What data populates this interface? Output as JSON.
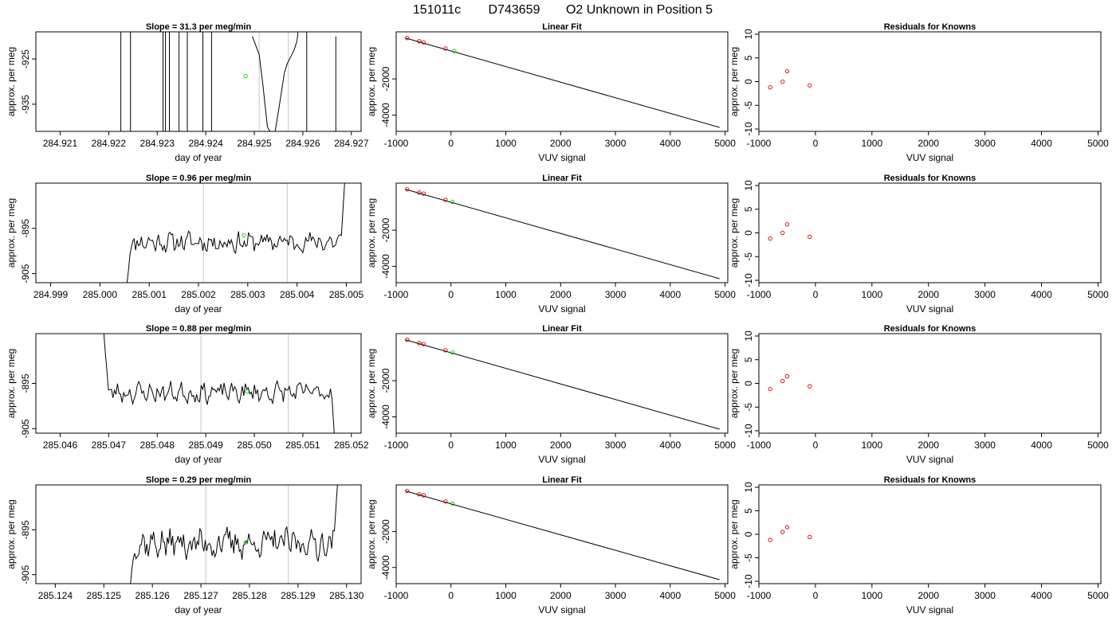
{
  "figure": {
    "title_parts": [
      "151011c",
      "D743659",
      "O2 Unknown in Position  5"
    ]
  },
  "colors": {
    "trace": "#000000",
    "vertical_marker": "#c8c8c8",
    "unknown_point": "#00cc00",
    "known_point": "#cc0000"
  },
  "chart_data": [
    {
      "type": "line",
      "row": 0,
      "col": 0,
      "title": "Slope =  31.3  per meg/min",
      "xlabel": "day of year",
      "ylabel": "approx. per meg",
      "xlim": [
        284.9205,
        284.9272
      ],
      "ylim": [
        -941,
        -919
      ],
      "xticks": [
        284.921,
        284.922,
        284.923,
        284.924,
        284.925,
        284.926,
        284.927
      ],
      "xtick_labels": [
        "284.921",
        "284.922",
        "284.923",
        "284.924",
        "284.925",
        "284.926",
        "284.927"
      ],
      "yticks": [
        -925,
        -935
      ],
      "ytick_labels": [
        "-925",
        "-935"
      ],
      "vlines": [
        284.9251,
        284.9257
      ],
      "segments": [
        [
          [
            284.92225,
            -919
          ],
          [
            284.92225,
            -941
          ]
        ],
        [
          [
            284.92245,
            -941
          ],
          [
            284.92245,
            -919
          ]
        ],
        [
          [
            284.92312,
            -919
          ],
          [
            284.92312,
            -941
          ]
        ],
        [
          [
            284.92317,
            -941
          ],
          [
            284.92317,
            -919
          ]
        ],
        [
          [
            284.92325,
            -919
          ],
          [
            284.92325,
            -941
          ]
        ],
        [
          [
            284.92345,
            -941
          ],
          [
            284.92345,
            -919
          ]
        ],
        [
          [
            284.92362,
            -919
          ],
          [
            284.92362,
            -941
          ]
        ],
        [
          [
            284.92394,
            -941
          ],
          [
            284.92394,
            -919
          ]
        ],
        [
          [
            284.92412,
            -919
          ],
          [
            284.92412,
            -941
          ]
        ],
        [
          [
            284.92496,
            -920
          ],
          [
            284.9251,
            -924
          ],
          [
            284.92518,
            -931
          ],
          [
            284.92523,
            -936
          ],
          [
            284.92527,
            -940
          ],
          [
            284.92532,
            -941
          ]
        ],
        [
          [
            284.92543,
            -941
          ],
          [
            284.92552,
            -935
          ],
          [
            284.92562,
            -928
          ],
          [
            284.92568,
            -926
          ],
          [
            284.92582,
            -923
          ],
          [
            284.92588,
            -921
          ],
          [
            284.9259,
            -919
          ]
        ],
        [
          [
            284.92608,
            -919
          ],
          [
            284.92608,
            -941
          ]
        ],
        [
          [
            284.92668,
            -941
          ],
          [
            284.92668,
            -920
          ]
        ]
      ],
      "unknown_points": [
        [
          284.92482,
          -928.8
        ]
      ]
    },
    {
      "type": "scatter",
      "row": 0,
      "col": 1,
      "title": "Linear Fit",
      "xlabel": "VUV signal",
      "ylabel": "approx. per meg",
      "xlim": [
        -1000,
        5050
      ],
      "ylim": [
        -4900,
        600
      ],
      "xticks": [
        -1000,
        0,
        1000,
        2000,
        3000,
        4000,
        5000
      ],
      "xtick_labels": [
        "-1000",
        "0",
        "1000",
        "2000",
        "3000",
        "4000",
        "5000"
      ],
      "yticks": [
        -2000,
        -4000
      ],
      "ytick_labels": [
        "-2000",
        "-4000"
      ],
      "fit_line": [
        [
          -830,
          260
        ],
        [
          4900,
          -4680
        ]
      ],
      "known_points": [
        [
          -800,
          260
        ],
        [
          -580,
          80
        ],
        [
          -500,
          20
        ],
        [
          -100,
          -320
        ]
      ],
      "unknown_points": [
        [
          60,
          -460
        ]
      ]
    },
    {
      "type": "scatter",
      "row": 0,
      "col": 2,
      "title": "Residuals for Knowns",
      "xlabel": "VUV signal",
      "ylabel": "approx. per meg",
      "xlim": [
        -1000,
        5050
      ],
      "ylim": [
        -10.5,
        10.5
      ],
      "xticks": [
        -1000,
        0,
        1000,
        2000,
        3000,
        4000,
        5000
      ],
      "xtick_labels": [
        "-1000",
        "0",
        "1000",
        "2000",
        "3000",
        "4000",
        "5000"
      ],
      "yticks": [
        10,
        5,
        0,
        -5,
        -10
      ],
      "ytick_labels": [
        "10",
        "5",
        "0",
        "-5",
        "-10"
      ],
      "known_points": [
        [
          -800,
          -1.2
        ],
        [
          -580,
          0
        ],
        [
          -500,
          2.2
        ],
        [
          -100,
          -0.8
        ]
      ]
    },
    {
      "type": "line",
      "row": 1,
      "col": 0,
      "title": "Slope =  0.96  per meg/min",
      "xlabel": "day of year",
      "ylabel": "approx. per meg",
      "xlim": [
        284.9987,
        285.0053
      ],
      "ylim": [
        -907,
        -885
      ],
      "xticks": [
        284.999,
        285.0,
        285.001,
        285.002,
        285.003,
        285.004,
        285.005
      ],
      "xtick_labels": [
        "284.999",
        "285.000",
        "285.001",
        "285.002",
        "285.003",
        "285.004",
        "285.005"
      ],
      "yticks": [
        -895,
        -905
      ],
      "ytick_labels": [
        "-895",
        "-905"
      ],
      "vlines": [
        285.0021,
        285.0038
      ],
      "noise_trace": {
        "x_start": 285.00055,
        "x_end": 285.0049,
        "lead_in_from": -907,
        "base": -898,
        "amplitude": 2.4,
        "end_rise_to": -885,
        "seed": 11
      },
      "unknown_points": [
        [
          285.00292,
          -896.5
        ]
      ]
    },
    {
      "type": "scatter",
      "row": 1,
      "col": 1,
      "title": "Linear Fit",
      "xlabel": "VUV signal",
      "ylabel": "approx. per meg",
      "xlim": [
        -1000,
        5050
      ],
      "ylim": [
        -4900,
        600
      ],
      "xticks": [
        -1000,
        0,
        1000,
        2000,
        3000,
        4000,
        5000
      ],
      "xtick_labels": [
        "-1000",
        "0",
        "1000",
        "2000",
        "3000",
        "4000",
        "5000"
      ],
      "yticks": [
        -2000,
        -4000
      ],
      "ytick_labels": [
        "-2000",
        "-4000"
      ],
      "fit_line": [
        [
          -830,
          260
        ],
        [
          4900,
          -4680
        ]
      ],
      "known_points": [
        [
          -800,
          260
        ],
        [
          -580,
          80
        ],
        [
          -500,
          20
        ],
        [
          -100,
          -320
        ]
      ],
      "unknown_points": [
        [
          30,
          -440
        ]
      ]
    },
    {
      "type": "scatter",
      "row": 1,
      "col": 2,
      "title": "Residuals for Knowns",
      "xlabel": "VUV signal",
      "ylabel": "approx. per meg",
      "xlim": [
        -1000,
        5050
      ],
      "ylim": [
        -10.5,
        10.5
      ],
      "xticks": [
        -1000,
        0,
        1000,
        2000,
        3000,
        4000,
        5000
      ],
      "xtick_labels": [
        "-1000",
        "0",
        "1000",
        "2000",
        "3000",
        "4000",
        "5000"
      ],
      "yticks": [
        10,
        5,
        0,
        -5,
        -10
      ],
      "ytick_labels": [
        "10",
        "5",
        "0",
        "-5",
        "-10"
      ],
      "known_points": [
        [
          -800,
          -1.2
        ],
        [
          -580,
          0
        ],
        [
          -500,
          1.8
        ],
        [
          -100,
          -0.8
        ]
      ]
    },
    {
      "type": "line",
      "row": 2,
      "col": 0,
      "title": "Slope =  0.88  per meg/min",
      "xlabel": "day of year",
      "ylabel": "approx. per meg",
      "xlim": [
        285.0455,
        285.0522
      ],
      "ylim": [
        -906,
        -884
      ],
      "xticks": [
        285.046,
        285.047,
        285.048,
        285.049,
        285.05,
        285.051,
        285.052
      ],
      "xtick_labels": [
        "285.046",
        "285.047",
        "285.048",
        "285.049",
        "285.050",
        "285.051",
        "285.052"
      ],
      "yticks": [
        -895,
        -905
      ],
      "ytick_labels": [
        "-895",
        "-905"
      ],
      "vlines": [
        285.0489,
        285.0507
      ],
      "noise_trace": {
        "x_start": 285.0469,
        "x_end": 285.0516,
        "lead_in_from": -884,
        "base": -897,
        "amplitude": 2.4,
        "end_drop_to": -906,
        "seed": 23
      },
      "unknown_points": [
        [
          285.04985,
          -896.8
        ]
      ]
    },
    {
      "type": "scatter",
      "row": 2,
      "col": 1,
      "title": "Linear Fit",
      "xlabel": "VUV signal",
      "ylabel": "approx. per meg",
      "xlim": [
        -1000,
        5050
      ],
      "ylim": [
        -4900,
        600
      ],
      "xticks": [
        -1000,
        0,
        1000,
        2000,
        3000,
        4000,
        5000
      ],
      "xtick_labels": [
        "-1000",
        "0",
        "1000",
        "2000",
        "3000",
        "4000",
        "5000"
      ],
      "yticks": [
        -2000,
        -4000
      ],
      "ytick_labels": [
        "-2000",
        "-4000"
      ],
      "fit_line": [
        [
          -830,
          260
        ],
        [
          4900,
          -4680
        ]
      ],
      "known_points": [
        [
          -800,
          260
        ],
        [
          -580,
          80
        ],
        [
          -500,
          20
        ],
        [
          -100,
          -320
        ]
      ],
      "unknown_points": [
        [
          30,
          -440
        ]
      ]
    },
    {
      "type": "scatter",
      "row": 2,
      "col": 2,
      "title": "Residuals for Knowns",
      "xlabel": "VUV signal",
      "ylabel": "approx. per meg",
      "xlim": [
        -1000,
        5050
      ],
      "ylim": [
        -10.5,
        10.5
      ],
      "xticks": [
        -1000,
        0,
        1000,
        2000,
        3000,
        4000,
        5000
      ],
      "xtick_labels": [
        "-1000",
        "0",
        "1000",
        "2000",
        "3000",
        "4000",
        "5000"
      ],
      "yticks": [
        10,
        5,
        0,
        -5,
        -10
      ],
      "ytick_labels": [
        "10",
        "5",
        "0",
        "-5",
        "-10"
      ],
      "known_points": [
        [
          -800,
          -1.2
        ],
        [
          -580,
          0.5
        ],
        [
          -500,
          1.5
        ],
        [
          -100,
          -0.6
        ]
      ]
    },
    {
      "type": "line",
      "row": 3,
      "col": 0,
      "title": "Slope =  0.29  per meg/min",
      "xlabel": "day of year",
      "ylabel": "approx. per meg",
      "xlim": [
        285.1236,
        285.1303
      ],
      "ylim": [
        -907,
        -885
      ],
      "xticks": [
        285.124,
        285.125,
        285.126,
        285.127,
        285.128,
        285.129,
        285.13
      ],
      "xtick_labels": [
        "285.124",
        "285.125",
        "285.126",
        "285.127",
        "285.128",
        "285.129",
        "285.130"
      ],
      "yticks": [
        -895,
        -905
      ],
      "ytick_labels": [
        "-895",
        "-905"
      ],
      "vlines": [
        285.1271,
        285.1288
      ],
      "noise_trace": {
        "x_start": 285.12555,
        "x_end": 285.12975,
        "lead_in_from": -907,
        "base": -898,
        "amplitude": 3.6,
        "end_rise_to": -885,
        "seed": 37
      },
      "unknown_points": [
        [
          285.12792,
          -897.8
        ]
      ]
    },
    {
      "type": "scatter",
      "row": 3,
      "col": 1,
      "title": "Linear Fit",
      "xlabel": "VUV signal",
      "ylabel": "approx. per meg",
      "xlim": [
        -1000,
        5050
      ],
      "ylim": [
        -4900,
        600
      ],
      "xticks": [
        -1000,
        0,
        1000,
        2000,
        3000,
        4000,
        5000
      ],
      "xtick_labels": [
        "-1000",
        "0",
        "1000",
        "2000",
        "3000",
        "4000",
        "5000"
      ],
      "yticks": [
        -2000,
        -4000
      ],
      "ytick_labels": [
        "-2000",
        "-4000"
      ],
      "fit_line": [
        [
          -830,
          260
        ],
        [
          4900,
          -4680
        ]
      ],
      "known_points": [
        [
          -800,
          260
        ],
        [
          -580,
          80
        ],
        [
          -500,
          20
        ],
        [
          -100,
          -320
        ]
      ],
      "unknown_points": [
        [
          30,
          -440
        ]
      ]
    },
    {
      "type": "scatter",
      "row": 3,
      "col": 2,
      "title": "Residuals for Knowns",
      "xlabel": "VUV signal",
      "ylabel": "approx. per meg",
      "xlim": [
        -1000,
        5050
      ],
      "ylim": [
        -10.5,
        10.5
      ],
      "xticks": [
        -1000,
        0,
        1000,
        2000,
        3000,
        4000,
        5000
      ],
      "xtick_labels": [
        "-1000",
        "0",
        "1000",
        "2000",
        "3000",
        "4000",
        "5000"
      ],
      "yticks": [
        10,
        5,
        0,
        -5,
        -10
      ],
      "ytick_labels": [
        "10",
        "5",
        "0",
        "-5",
        "-10"
      ],
      "known_points": [
        [
          -800,
          -1.2
        ],
        [
          -580,
          0.5
        ],
        [
          -500,
          1.5
        ],
        [
          -100,
          -0.6
        ]
      ]
    }
  ]
}
